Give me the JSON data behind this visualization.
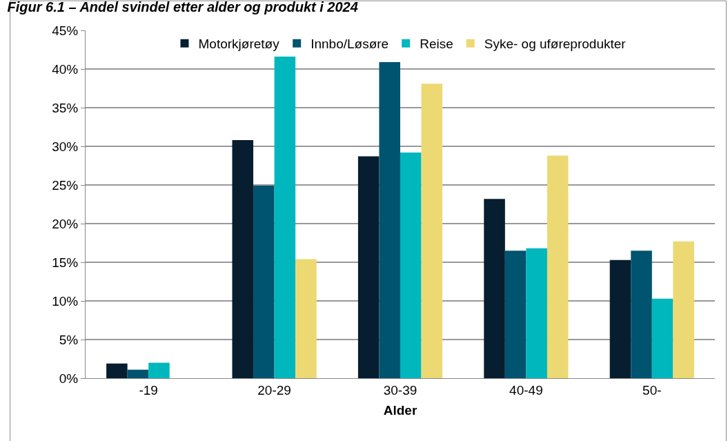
{
  "chart_data": {
    "type": "bar",
    "title": "Figur 6.1 – Andel svindel etter alder og produkt i 2024",
    "xlabel": "Alder",
    "categories": [
      "-19",
      "20-29",
      "30-39",
      "40-49",
      "50-"
    ],
    "series": [
      {
        "name": "Motorkjøretøy",
        "color": "#071d30",
        "values": [
          1.9,
          30.8,
          28.7,
          23.2,
          15.3
        ]
      },
      {
        "name": "Innbo/Løsøre",
        "color": "#00546f",
        "values": [
          1.1,
          24.9,
          40.9,
          16.5,
          16.5
        ]
      },
      {
        "name": "Reise",
        "color": "#00b7bd",
        "values": [
          2.0,
          41.6,
          29.2,
          16.8,
          10.3
        ]
      },
      {
        "name": "Syke- og uføreprodukter",
        "color": "#ecd973",
        "values": [
          null,
          15.4,
          38.1,
          28.8,
          17.7
        ]
      }
    ],
    "ylim": [
      0,
      45
    ],
    "yticks": [
      {
        "value": 0,
        "label": "0%"
      },
      {
        "value": 5,
        "label": "5%"
      },
      {
        "value": 10,
        "label": "10%"
      },
      {
        "value": 15,
        "label": "15%"
      },
      {
        "value": 20,
        "label": "20%"
      },
      {
        "value": 25,
        "label": "25%"
      },
      {
        "value": 30,
        "label": "30%"
      },
      {
        "value": 35,
        "label": "35%"
      },
      {
        "value": 40,
        "label": "40%"
      },
      {
        "value": 45,
        "label": "45%"
      }
    ],
    "grid": "y",
    "legend": "top"
  }
}
